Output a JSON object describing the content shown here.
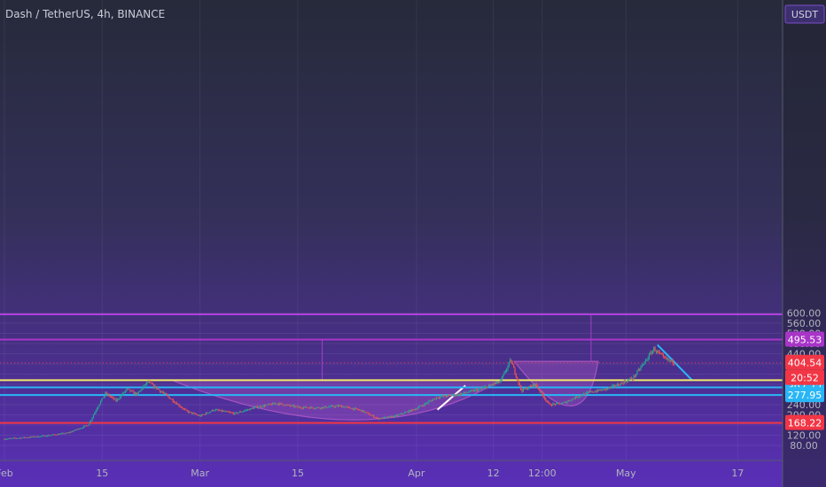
{
  "chart_data": {
    "type": "candlestick",
    "title": "Dash / TetherUS, 4h, BINANCE",
    "currency": "USDT",
    "ylim": [
      60,
      600
    ],
    "y_ticks": [
      {
        "value": 80,
        "label": "80.00"
      },
      {
        "value": 120,
        "label": "120.00"
      },
      {
        "value": 160,
        "label": "160.00"
      },
      {
        "value": 200,
        "label": "200.00"
      },
      {
        "value": 240,
        "label": "240.00"
      },
      {
        "value": 280,
        "label": "280.00"
      },
      {
        "value": 320,
        "label": "320.00"
      },
      {
        "value": 360,
        "label": "360.00"
      },
      {
        "value": 400,
        "label": "400.00"
      },
      {
        "value": 440,
        "label": "440.00"
      },
      {
        "value": 480,
        "label": "480.00"
      },
      {
        "value": 520,
        "label": "520.00"
      },
      {
        "value": 560,
        "label": "560.00"
      },
      {
        "value": 600,
        "label": "600.00"
      }
    ],
    "x_ticks": [
      {
        "label": "Feb",
        "day": 0
      },
      {
        "label": "15",
        "day": 14
      },
      {
        "label": "Mar",
        "day": 28
      },
      {
        "label": "15",
        "day": 42
      },
      {
        "label": "Apr",
        "day": 59
      },
      {
        "label": "12",
        "day": 70
      },
      {
        "label": "12:00",
        "day": 77
      },
      {
        "label": "May",
        "day": 89
      },
      {
        "label": "17",
        "day": 105
      }
    ],
    "levels": [
      {
        "label": "595.00",
        "value": 595,
        "color": "#b03fe0"
      },
      {
        "label": "495.53",
        "value": 495.53,
        "color": "#a835c8"
      },
      {
        "label": "336.25",
        "value": 336.25,
        "color": "#f2e96b"
      },
      {
        "label": "307.72",
        "value": 307.72,
        "color": "#29b6f6"
      },
      {
        "label": "277.95",
        "value": 277.95,
        "color": "#29b6f6"
      },
      {
        "label": "168.22",
        "value": 168.22,
        "color": "#f23645"
      }
    ],
    "current_price": {
      "label": "404.54",
      "countdown": "20:52",
      "value": 404.54,
      "color": "#f23645"
    },
    "price_path": [
      {
        "day": 0,
        "price": 105
      },
      {
        "day": 5,
        "price": 115
      },
      {
        "day": 9,
        "price": 128
      },
      {
        "day": 12,
        "price": 160
      },
      {
        "day": 13.5,
        "price": 240
      },
      {
        "day": 14.5,
        "price": 285
      },
      {
        "day": 16,
        "price": 255
      },
      {
        "day": 17.5,
        "price": 300
      },
      {
        "day": 19,
        "price": 280
      },
      {
        "day": 20.5,
        "price": 330
      },
      {
        "day": 22,
        "price": 300
      },
      {
        "day": 23.5,
        "price": 270
      },
      {
        "day": 26,
        "price": 215
      },
      {
        "day": 28,
        "price": 195
      },
      {
        "day": 30,
        "price": 220
      },
      {
        "day": 33,
        "price": 205
      },
      {
        "day": 36,
        "price": 230
      },
      {
        "day": 39,
        "price": 245
      },
      {
        "day": 42,
        "price": 230
      },
      {
        "day": 45,
        "price": 228
      },
      {
        "day": 48,
        "price": 235
      },
      {
        "day": 51,
        "price": 218
      },
      {
        "day": 53.5,
        "price": 185
      },
      {
        "day": 56,
        "price": 195
      },
      {
        "day": 59,
        "price": 225
      },
      {
        "day": 62,
        "price": 270
      },
      {
        "day": 65,
        "price": 280
      },
      {
        "day": 68,
        "price": 300
      },
      {
        "day": 71,
        "price": 330
      },
      {
        "day": 72.5,
        "price": 415
      },
      {
        "day": 74,
        "price": 295
      },
      {
        "day": 76,
        "price": 320
      },
      {
        "day": 78,
        "price": 240
      },
      {
        "day": 80,
        "price": 245
      },
      {
        "day": 82,
        "price": 272
      },
      {
        "day": 84,
        "price": 290
      },
      {
        "day": 86,
        "price": 300
      },
      {
        "day": 88,
        "price": 320
      },
      {
        "day": 90,
        "price": 345
      },
      {
        "day": 91.5,
        "price": 400
      },
      {
        "day": 93,
        "price": 460
      },
      {
        "day": 94.5,
        "price": 420
      },
      {
        "day": 96,
        "price": 404.54
      }
    ],
    "drawings": [
      {
        "type": "arc",
        "from": {
          "day": 24,
          "price": 336
        },
        "to": {
          "day": 71,
          "price": 336
        },
        "bottom": {
          "day": 50,
          "price": 180
        }
      },
      {
        "type": "arc",
        "from": {
          "day": 73,
          "price": 410
        },
        "to": {
          "day": 85,
          "price": 410
        },
        "bottom": {
          "day": 81,
          "price": 235
        }
      },
      {
        "type": "line",
        "from": {
          "day": 62,
          "price": 220
        },
        "to": {
          "day": 66,
          "price": 315
        },
        "color": "#ffffff"
      },
      {
        "type": "line",
        "from": {
          "day": 93.5,
          "price": 475
        },
        "to": {
          "day": 98.5,
          "price": 335
        },
        "color": "#29b6f6"
      },
      {
        "type": "vline",
        "day": 45.5,
        "from": 495.53,
        "to": 336.25
      },
      {
        "type": "vline",
        "day": 84,
        "from": 595,
        "to": 410
      }
    ]
  }
}
